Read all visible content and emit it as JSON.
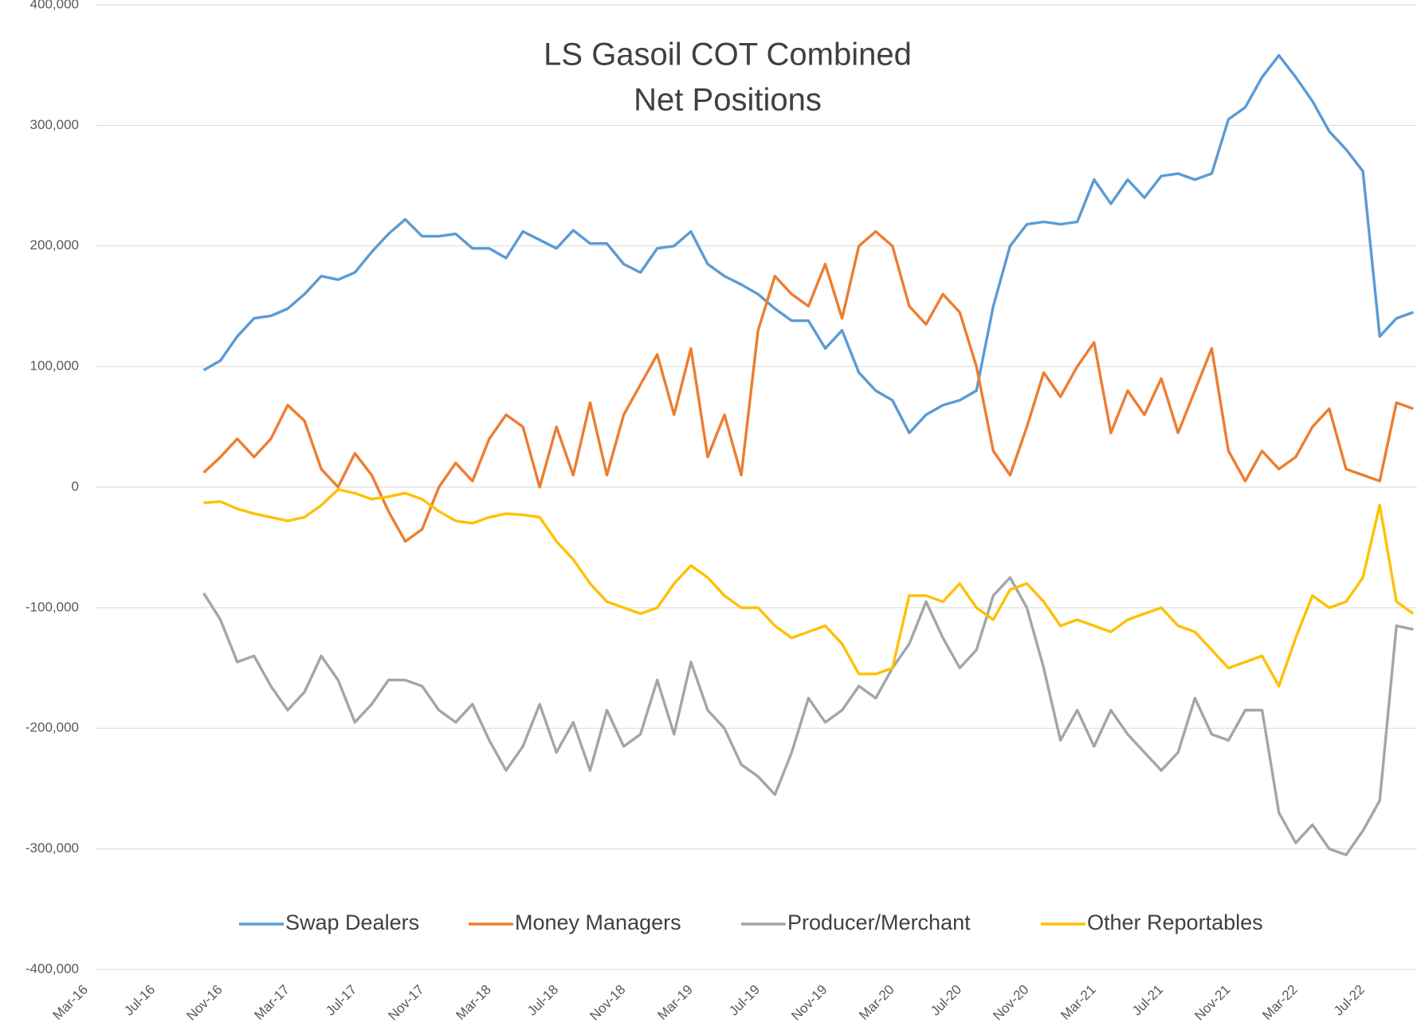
{
  "chart_data": {
    "type": "line",
    "title": [
      "LS Gasoil COT Combined",
      "Net Positions"
    ],
    "x": [
      "Mar-16",
      null,
      null,
      null,
      "Jul-16",
      null,
      null,
      null,
      "Nov-16",
      null,
      null,
      null,
      "Mar-17",
      null,
      null,
      null,
      "Jul-17",
      null,
      null,
      null,
      "Nov-17",
      null,
      null,
      null,
      "Mar-18",
      null,
      null,
      null,
      "Jul-18",
      null,
      null,
      null,
      "Nov-18",
      null,
      null,
      null,
      "Mar-19",
      null,
      null,
      null,
      "Jul-19",
      null,
      null,
      null,
      "Nov-19",
      null,
      null,
      null,
      "Mar-20",
      null,
      null,
      null,
      "Jul-20",
      null,
      null,
      null,
      "Nov-20",
      null,
      null,
      null,
      "Mar-21",
      null,
      null,
      null,
      "Jul-21",
      null,
      null,
      null,
      "Nov-21",
      null,
      null,
      null,
      "Mar-22",
      null,
      null,
      null,
      "Jul-22",
      null,
      null,
      null
    ],
    "series": [
      {
        "name": "Swap Dealers",
        "color": "#5b9bd5",
        "values": [
          null,
          null,
          null,
          null,
          null,
          null,
          null,
          97000,
          105000,
          125000,
          140000,
          142000,
          148000,
          160000,
          175000,
          172000,
          178000,
          195000,
          210000,
          222000,
          208000,
          208000,
          210000,
          198000,
          198000,
          190000,
          212000,
          205000,
          198000,
          213000,
          202000,
          202000,
          185000,
          178000,
          198000,
          200000,
          212000,
          185000,
          175000,
          168000,
          160000,
          148000,
          138000,
          138000,
          115000,
          130000,
          95000,
          80000,
          72000,
          45000,
          60000,
          68000,
          72000,
          80000,
          150000,
          200000,
          218000,
          220000,
          218000,
          220000,
          255000,
          235000,
          255000,
          240000,
          258000,
          260000,
          255000,
          260000,
          305000,
          315000,
          340000,
          358000,
          340000,
          320000,
          295000,
          280000,
          262000,
          125000,
          140000,
          145000
        ]
      },
      {
        "name": "Money Managers",
        "color": "#ed7d31",
        "values": [
          null,
          null,
          null,
          null,
          null,
          null,
          null,
          12000,
          25000,
          40000,
          25000,
          40000,
          68000,
          55000,
          15000,
          0,
          28000,
          10000,
          -20000,
          -45000,
          -35000,
          0,
          20000,
          5000,
          40000,
          60000,
          50000,
          0,
          50000,
          10000,
          70000,
          10000,
          60000,
          85000,
          110000,
          60000,
          115000,
          25000,
          60000,
          10000,
          130000,
          175000,
          160000,
          150000,
          185000,
          140000,
          200000,
          212000,
          200000,
          150000,
          135000,
          160000,
          145000,
          100000,
          30000,
          10000,
          50000,
          95000,
          75000,
          100000,
          120000,
          45000,
          80000,
          60000,
          90000,
          45000,
          80000,
          115000,
          30000,
          5000,
          30000,
          15000,
          25000,
          50000,
          65000,
          15000,
          10000,
          5000,
          70000,
          65000
        ]
      },
      {
        "name": "Producer/Merchant",
        "color": "#a5a5a5",
        "values": [
          null,
          null,
          null,
          null,
          null,
          null,
          null,
          -88000,
          -110000,
          -145000,
          -140000,
          -165000,
          -185000,
          -170000,
          -140000,
          -160000,
          -195000,
          -180000,
          -160000,
          -160000,
          -165000,
          -185000,
          -195000,
          -180000,
          -210000,
          -235000,
          -215000,
          -180000,
          -220000,
          -195000,
          -235000,
          -185000,
          -215000,
          -205000,
          -160000,
          -205000,
          -145000,
          -185000,
          -200000,
          -230000,
          -240000,
          -255000,
          -220000,
          -175000,
          -195000,
          -185000,
          -165000,
          -175000,
          -150000,
          -130000,
          -95000,
          -125000,
          -150000,
          -135000,
          -90000,
          -75000,
          -100000,
          -150000,
          -210000,
          -185000,
          -215000,
          -185000,
          -205000,
          -220000,
          -235000,
          -220000,
          -175000,
          -205000,
          -210000,
          -185000,
          -185000,
          -270000,
          -295000,
          -280000,
          -300000,
          -305000,
          -285000,
          -260000,
          -115000,
          -118000
        ]
      },
      {
        "name": "Other Reportables",
        "color": "#ffc000",
        "values": [
          null,
          null,
          null,
          null,
          null,
          null,
          null,
          -13000,
          -12000,
          -18000,
          -22000,
          -25000,
          -28000,
          -25000,
          -15000,
          -2000,
          -5000,
          -10000,
          -8000,
          -5000,
          -10000,
          -20000,
          -28000,
          -30000,
          -25000,
          -22000,
          -23000,
          -25000,
          -45000,
          -60000,
          -80000,
          -95000,
          -100000,
          -105000,
          -100000,
          -80000,
          -65000,
          -75000,
          -90000,
          -100000,
          -100000,
          -115000,
          -125000,
          -120000,
          -115000,
          -130000,
          -155000,
          -155000,
          -150000,
          -90000,
          -90000,
          -95000,
          -80000,
          -100000,
          -110000,
          -85000,
          -80000,
          -95000,
          -115000,
          -110000,
          -115000,
          -120000,
          -110000,
          -105000,
          -100000,
          -115000,
          -120000,
          -135000,
          -150000,
          -145000,
          -140000,
          -165000,
          -125000,
          -90000,
          -100000,
          -95000,
          -75000,
          -15000,
          -95000,
          -105000
        ]
      }
    ],
    "ylim": [
      -400000,
      400000
    ],
    "yticks": [
      {
        "value": -400000,
        "label": "-400,000"
      },
      {
        "value": -300000,
        "label": "-300,000"
      },
      {
        "value": -200000,
        "label": "-200,000"
      },
      {
        "value": -100000,
        "label": "-100,000"
      },
      0,
      {
        "value": 100000,
        "label": "100,000"
      },
      {
        "value": 200000,
        "label": "200,000"
      },
      {
        "value": 300000,
        "label": "300,000"
      },
      {
        "value": 400000,
        "label": "400,000"
      }
    ],
    "grid": true,
    "legend": "bottom"
  }
}
